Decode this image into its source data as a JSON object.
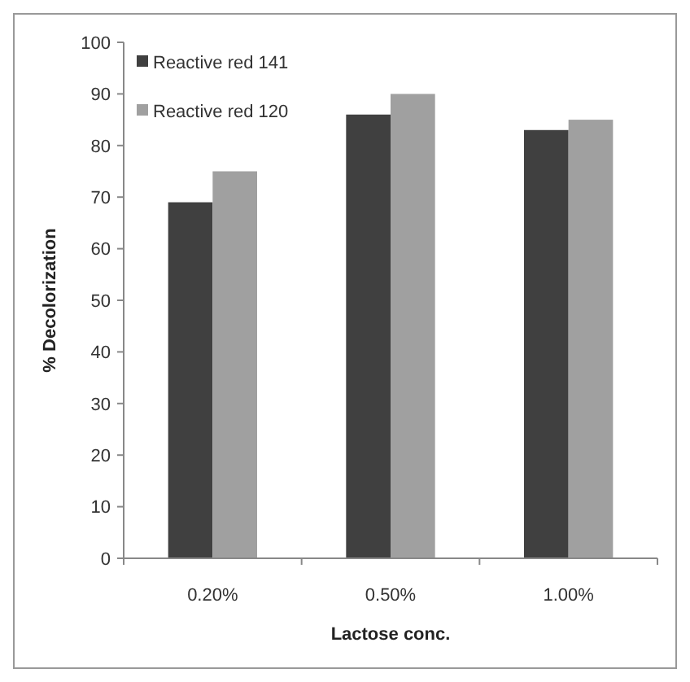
{
  "chart_data": {
    "type": "bar",
    "xlabel": "Lactose conc.",
    "ylabel": "% Decolorization",
    "categories": [
      "0.20%",
      "0.50%",
      "1.00%"
    ],
    "series": [
      {
        "name": "Reactive red 141",
        "color": "#404040",
        "values": [
          69,
          86,
          83
        ]
      },
      {
        "name": "Reactive red 120",
        "color": "#a0a0a0",
        "values": [
          75,
          90,
          85
        ]
      }
    ],
    "ylim": [
      0,
      100
    ],
    "yticks": [
      0,
      10,
      20,
      30,
      40,
      50,
      60,
      70,
      80,
      90,
      100
    ],
    "grid": false,
    "legend": "top left"
  }
}
